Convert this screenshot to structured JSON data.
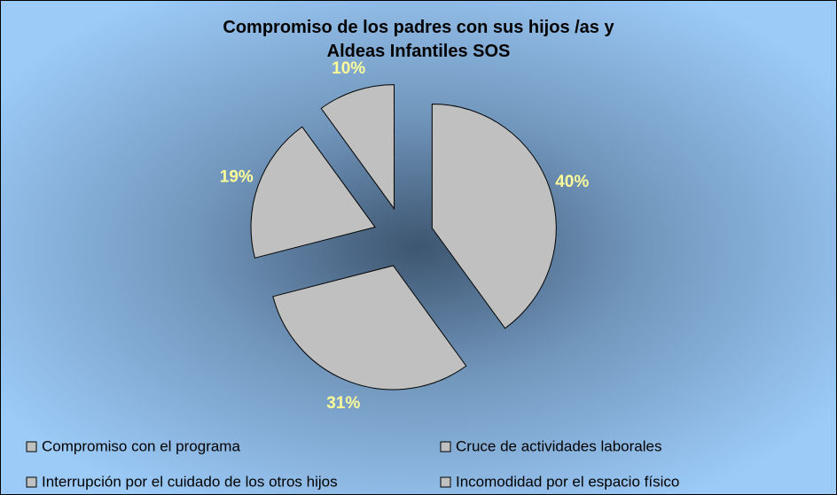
{
  "chart_data": {
    "type": "pie",
    "title": "Compromiso de los padres con sus hijos /as y Aldeas Infantiles SOS",
    "categories": [
      "Compromiso con el programa",
      "Cruce de actividades laborales",
      "Interrupción por el cuidado de los otros hijos",
      "Incomodidad por el espacio físico"
    ],
    "values": [
      40,
      31,
      19,
      10
    ],
    "value_labels": [
      "40%",
      "31%",
      "19%",
      "10%"
    ],
    "color": "#c0c0c0",
    "legend": "bottom"
  }
}
